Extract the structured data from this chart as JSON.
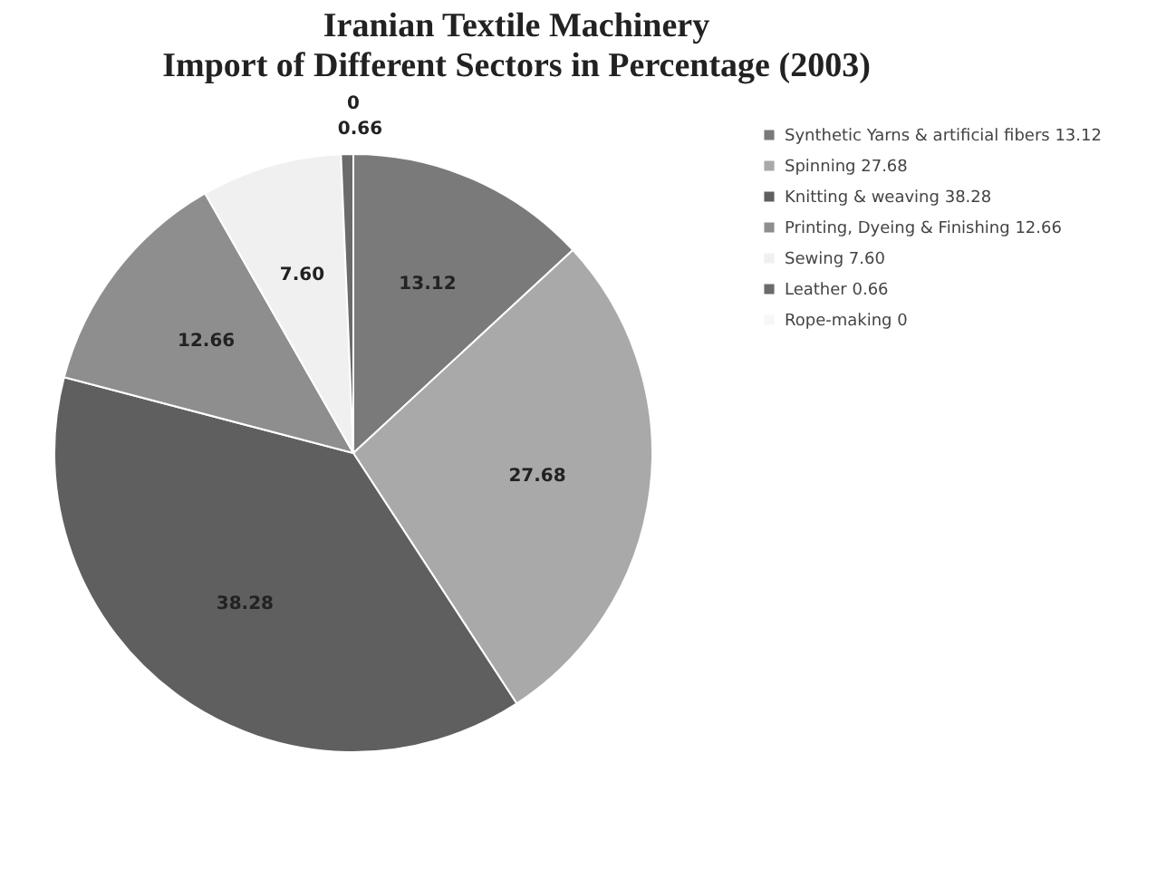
{
  "chart_data": {
    "type": "pie",
    "title": "Iranian Textile Machinery",
    "subtitle": "Import of Different Sectors in Percentage (2003)",
    "categories": [
      "Synthetic Yarns & artificial fibers",
      "Spinning",
      "Knitting & weaving",
      "Printing, Dyeing & Finishing",
      "Sewing",
      "Leather",
      "Rope-making"
    ],
    "values": [
      13.12,
      27.68,
      38.28,
      12.66,
      7.6,
      0.66,
      0
    ],
    "value_labels": [
      "13.12",
      "27.68",
      "38.28",
      "12.66",
      "7.60",
      "0.66",
      "0"
    ],
    "colors": [
      "#7a7a7a",
      "#a9a9a9",
      "#5f5f5f",
      "#8e8e8e",
      "#f0f0f0",
      "#6b6b6b",
      "#f7f7f7"
    ],
    "legend": "right"
  }
}
